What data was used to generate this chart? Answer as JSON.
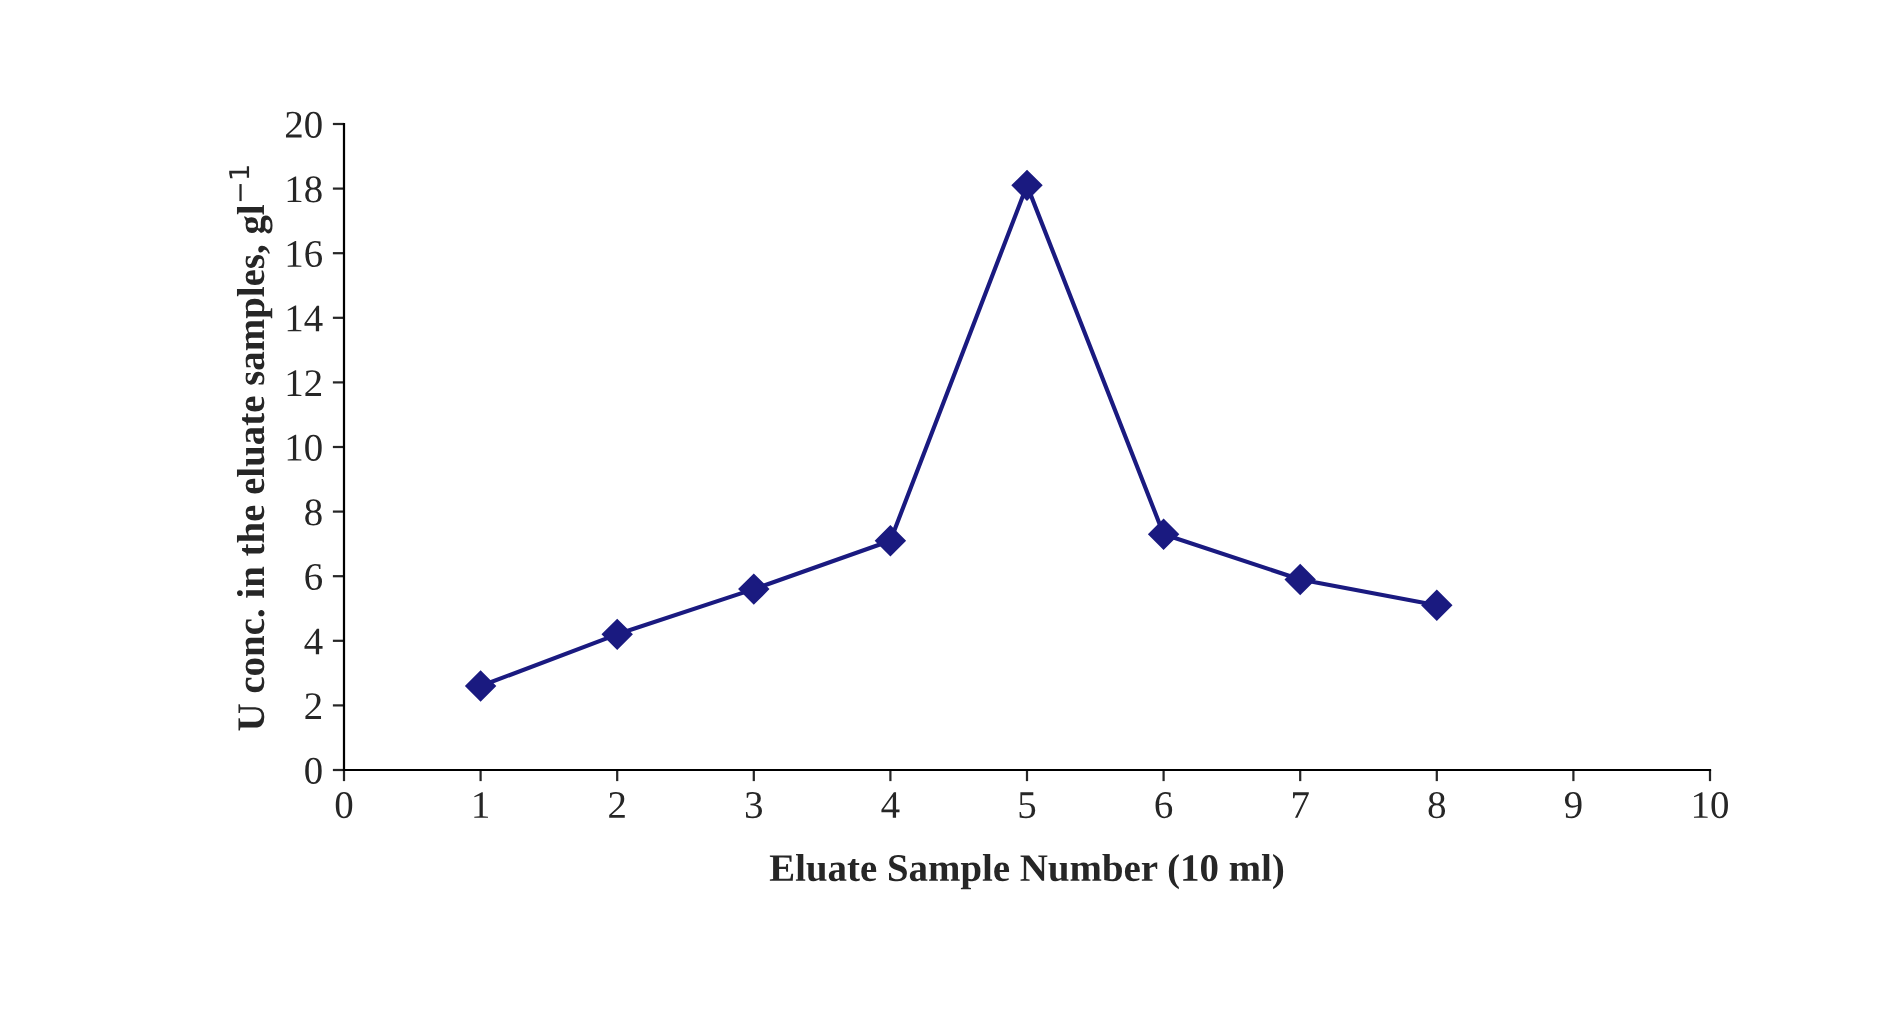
{
  "chart_data": {
    "type": "line",
    "xlabel": "Eluate Sample Number (10 ml)",
    "ylabel": "U conc. in the eluate samples, gl$^{−1}$",
    "x": [
      1,
      2,
      3,
      4,
      5,
      6,
      7,
      8
    ],
    "series": [
      {
        "color": "#1a1a80",
        "values": [
          2.6,
          4.2,
          5.6,
          7.1,
          18.1,
          7.3,
          5.9,
          5.1
        ]
      }
    ],
    "xlim": [
      0,
      10
    ],
    "xticks": [
      0,
      1,
      2,
      3,
      4,
      5,
      6,
      7,
      8,
      9,
      10
    ],
    "ylim": [
      0,
      20
    ],
    "yticks": [
      0,
      2,
      4,
      6,
      8,
      10,
      12,
      14,
      16,
      18,
      20
    ],
    "grid": false,
    "legend": false,
    "marker": "diamond",
    "line_style": "solid"
  }
}
